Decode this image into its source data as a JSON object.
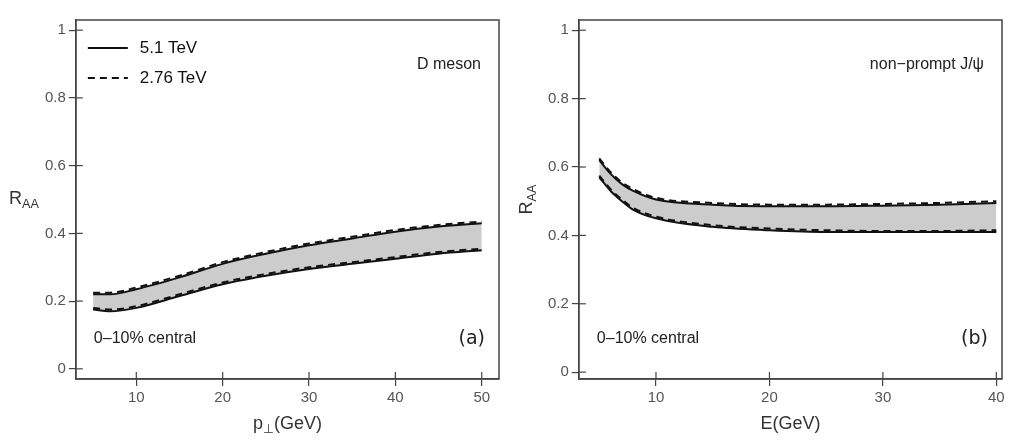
{
  "chart_data": [
    {
      "type": "line",
      "xlabel": "p$_{⊥}$(GeV)",
      "ylabel": "R$_{AA}$",
      "legend": "top left",
      "grid": false,
      "x": [
        5,
        7,
        10,
        15,
        20,
        25,
        30,
        35,
        40,
        45,
        50
      ],
      "xlim": [
        3,
        52
      ],
      "xticks": [
        10,
        20,
        30,
        40,
        50
      ],
      "ylim": [
        -0.03,
        1.03
      ],
      "yticks": [
        0,
        0.2,
        0.4,
        0.6,
        0.8,
        1
      ],
      "annotations": [
        "D meson",
        "0–10% central",
        "(a)"
      ],
      "series": [
        {
          "name": "5.1 TeV",
          "color": "#111111",
          "line_style": "solid",
          "values": [
            0.22,
            0.22,
            0.235,
            0.27,
            0.31,
            0.34,
            0.365,
            0.385,
            0.405,
            0.42,
            0.43
          ],
          "lower": [
            0.175,
            0.17,
            0.18,
            0.215,
            0.25,
            0.275,
            0.295,
            0.31,
            0.325,
            0.34,
            0.35
          ],
          "upper": [
            0.22,
            0.22,
            0.235,
            0.27,
            0.31,
            0.34,
            0.365,
            0.385,
            0.405,
            0.42,
            0.43
          ]
        },
        {
          "color": "#111111",
          "line_style": "solid",
          "values": [
            0.175,
            0.17,
            0.18,
            0.215,
            0.25,
            0.275,
            0.295,
            0.31,
            0.325,
            0.34,
            0.35
          ]
        },
        {
          "name": "2.76 TeV",
          "color": "#111111",
          "line_style": "dashed",
          "values": [
            0.225,
            0.225,
            0.24,
            0.275,
            0.315,
            0.345,
            0.37,
            0.39,
            0.41,
            0.425,
            0.435
          ]
        },
        {
          "color": "#111111",
          "line_style": "dashed",
          "values": [
            0.18,
            0.175,
            0.185,
            0.22,
            0.255,
            0.28,
            0.3,
            0.315,
            0.33,
            0.345,
            0.355
          ]
        }
      ]
    },
    {
      "type": "line",
      "xlabel": "E(GeV)",
      "ylabel": "R$_{AA}$",
      "grid": false,
      "x": [
        5,
        6,
        7,
        8,
        10,
        15,
        20,
        25,
        30,
        35,
        40
      ],
      "xlim": [
        3.2,
        40.5
      ],
      "xticks": [
        10,
        20,
        30,
        40
      ],
      "ylim": [
        -0.02,
        1.03
      ],
      "yticks": [
        0,
        0.2,
        0.4,
        0.6,
        0.8,
        1
      ],
      "annotations": [
        "non−prompt J/ψ",
        "0–10% central",
        "(b)"
      ],
      "series": [
        {
          "color": "#111111",
          "line_style": "solid",
          "values": [
            0.62,
            0.58,
            0.55,
            0.53,
            0.505,
            0.49,
            0.485,
            0.485,
            0.487,
            0.49,
            0.495
          ],
          "lower": [
            0.57,
            0.53,
            0.5,
            0.475,
            0.45,
            0.425,
            0.415,
            0.41,
            0.41,
            0.41,
            0.41
          ],
          "upper": [
            0.62,
            0.58,
            0.55,
            0.53,
            0.505,
            0.49,
            0.485,
            0.485,
            0.487,
            0.49,
            0.495
          ]
        },
        {
          "color": "#111111",
          "line_style": "solid",
          "values": [
            0.57,
            0.53,
            0.5,
            0.475,
            0.45,
            0.425,
            0.415,
            0.41,
            0.41,
            0.41,
            0.41
          ]
        },
        {
          "color": "#111111",
          "line_style": "dashed",
          "values": [
            0.625,
            0.585,
            0.555,
            0.535,
            0.51,
            0.495,
            0.49,
            0.49,
            0.492,
            0.495,
            0.5
          ]
        },
        {
          "color": "#111111",
          "line_style": "dashed",
          "values": [
            0.575,
            0.535,
            0.505,
            0.48,
            0.455,
            0.43,
            0.42,
            0.415,
            0.413,
            0.413,
            0.415
          ]
        }
      ]
    }
  ]
}
